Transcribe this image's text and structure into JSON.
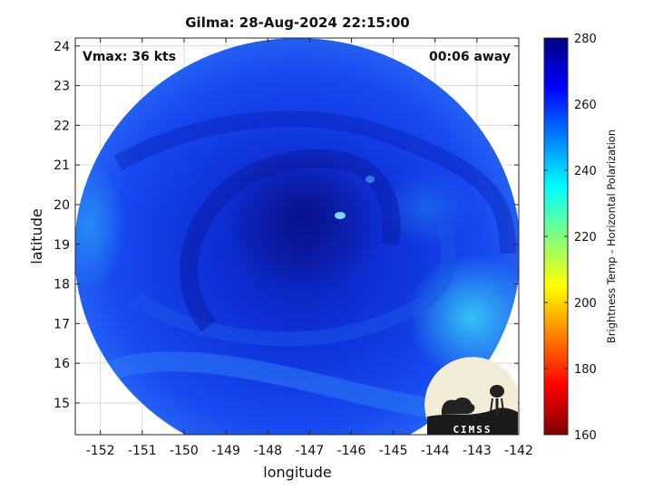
{
  "title": "Gilma: 28-Aug-2024 22:15:00",
  "annotations": {
    "vmax": "Vmax: 36 kts",
    "time_away": "00:06 away"
  },
  "axes": {
    "xlabel": "longitude",
    "ylabel": "latitude",
    "xlim": [
      -152.6,
      -142
    ],
    "ylim": [
      14.2,
      24.2
    ],
    "xticks": [
      -152,
      -151,
      -150,
      -149,
      -148,
      -147,
      -146,
      -145,
      -144,
      -143,
      -142
    ],
    "yticks": [
      15,
      16,
      17,
      18,
      19,
      20,
      21,
      22,
      23,
      24
    ],
    "grid": true
  },
  "colorbar": {
    "label": "Brightness Temp - Horizontal Polarization",
    "range": [
      160,
      280
    ],
    "ticks": [
      160,
      180,
      200,
      220,
      240,
      260,
      280
    ],
    "colormap": "jet"
  },
  "storm_center": {
    "lon": -146.8,
    "lat": 19.7
  },
  "logo": {
    "text": "CIMSS"
  }
}
